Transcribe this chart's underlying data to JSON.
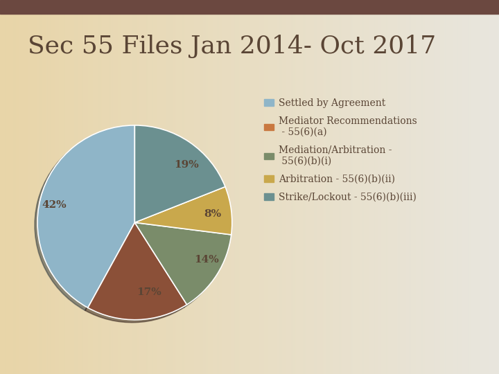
{
  "title": "Sec 55 Files Jan 2014- Oct 2017",
  "slices": [
    42,
    17,
    14,
    8,
    19
  ],
  "labels": [
    "42%",
    "17%",
    "14%",
    "8%",
    "19%"
  ],
  "colors": [
    "#8fb5c8",
    "#8b5038",
    "#7a8c6a",
    "#c9a84c",
    "#6b9090"
  ],
  "shadow_colors": [
    "#5a8099",
    "#5a2c18",
    "#4a5c3a",
    "#8a7020",
    "#3a6060"
  ],
  "legend_labels": [
    "Settled by Agreement",
    "Mediator Recommendations\n - 55(6)(a)",
    "Mediation/Arbitration -\n 55(6)(b)(i)",
    "Arbitration - 55(6)(b)(ii)",
    "Strike/Lockout - 55(6)(b)(iii)"
  ],
  "legend_colors": [
    "#8fb5c8",
    "#c97840",
    "#7a8c6a",
    "#c9a84c",
    "#6b9090"
  ],
  "header_color": "#6b4840",
  "bg_main": "#dedad0",
  "bg_left": "#e8d8b0",
  "title_color": "#5a4535",
  "text_color": "#5a4535",
  "startangle": 90,
  "title_fontsize": 26,
  "legend_fontsize": 10,
  "label_fontsize": 11
}
